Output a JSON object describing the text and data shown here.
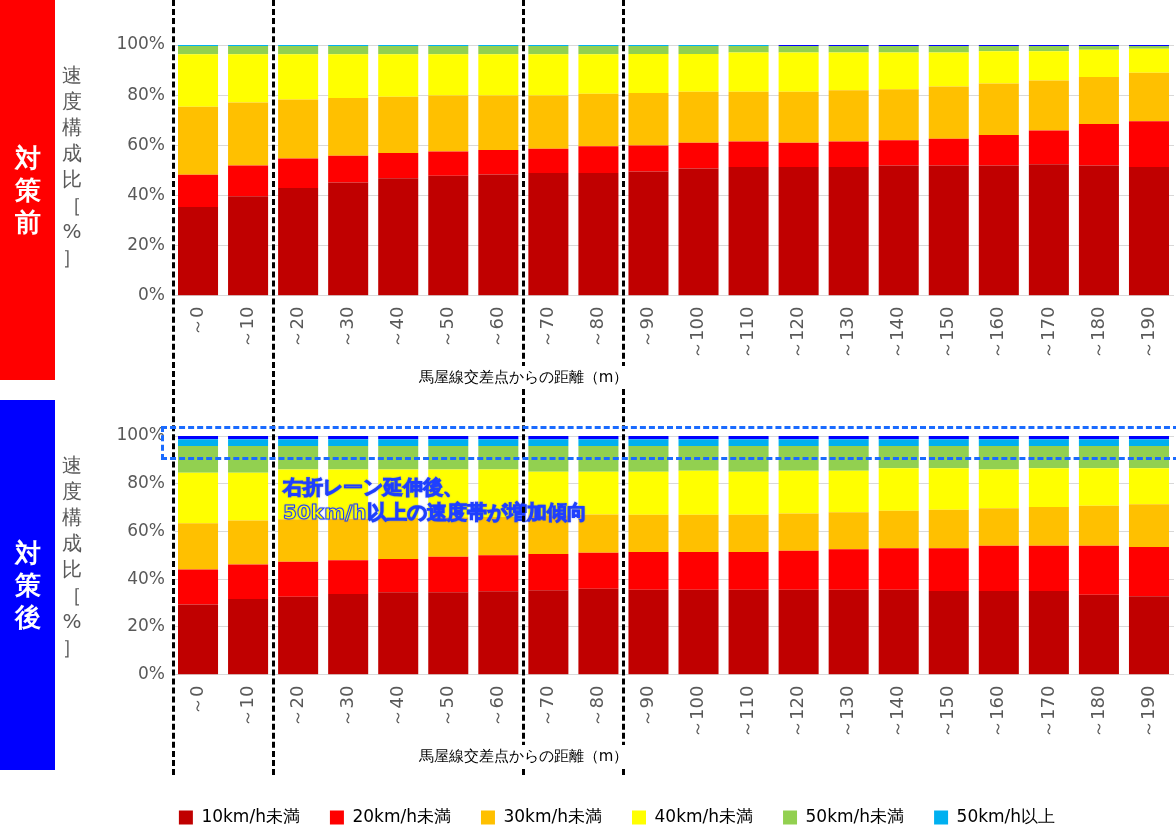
{
  "chart_data": [
    {
      "type": "bar",
      "title": "対策前",
      "stacked": true,
      "ylabel": "速度構成比［%］",
      "xlabel": "馬屋線交差点からの距離（m）",
      "categories": [
        "～0",
        "～10",
        "～20",
        "～30",
        "～40",
        "～50",
        "～60",
        "～70",
        "～80",
        "～90",
        "～100",
        "～110",
        "～120",
        "～130",
        "～140",
        "～150",
        "～160",
        "～170",
        "～180",
        "～190"
      ],
      "ylim": [
        0,
        100
      ],
      "yticks": [
        {
          "value": 0,
          "label": "0%"
        },
        {
          "value": 20,
          "label": "20%"
        },
        {
          "value": 40,
          "label": "40%"
        },
        {
          "value": 60,
          "label": "60%"
        },
        {
          "value": 80,
          "label": "80%"
        },
        {
          "value": 100,
          "label": "100%"
        }
      ],
      "grid": "y",
      "series": [
        {
          "color": "#c00000",
          "values": [
            35.4,
            39.7,
            42.9,
            45.1,
            46.8,
            47.8,
            48.3,
            48.9,
            48.9,
            49.5,
            50.7,
            51.3,
            51.3,
            51.3,
            51.9,
            51.9,
            51.9,
            52.4,
            51.9,
            51.3
          ]
        },
        {
          "color": "#ff0000",
          "values": [
            12.8,
            12.2,
            11.8,
            10.7,
            10.1,
            9.7,
            9.8,
            9.7,
            10.7,
            10.4,
            10.3,
            10.2,
            9.7,
            10.2,
            10.1,
            10.7,
            12.2,
            13.5,
            16.6,
            18.3
          ]
        },
        {
          "color": "#ffc000",
          "values": [
            27.2,
            25.2,
            23.6,
            23.1,
            22.5,
            22.4,
            21.8,
            21.3,
            21.0,
            20.9,
            20.3,
            19.8,
            20.3,
            20.4,
            20.3,
            20.8,
            20.5,
            19.9,
            18.7,
            19.3
          ]
        },
        {
          "color": "#ffff00",
          "values": [
            20.9,
            19.2,
            18.0,
            17.4,
            16.9,
            16.4,
            16.4,
            16.4,
            15.7,
            15.6,
            15.1,
            15.7,
            15.7,
            15.1,
            14.7,
            13.6,
            12.9,
            11.7,
            10.9,
            9.6
          ]
        },
        {
          "color": "#92d050",
          "values": [
            3.3,
            3.3,
            3.3,
            3.3,
            3.3,
            3.3,
            3.3,
            3.3,
            3.3,
            3.2,
            3.2,
            2.6,
            2.6,
            2.6,
            2.6,
            2.6,
            2.1,
            2.1,
            1.5,
            1.1
          ]
        },
        {
          "color": "#00b0f0",
          "values": [
            0.4,
            0.4,
            0.4,
            0.4,
            0.4,
            0.4,
            0.4,
            0.4,
            0.4,
            0.4,
            0.4,
            0.4,
            0,
            0,
            0,
            0,
            0,
            0,
            0,
            0
          ]
        },
        {
          "color": "#0000ff",
          "values": [
            0,
            0,
            0,
            0,
            0,
            0,
            0,
            0,
            0,
            0,
            0,
            0,
            0.4,
            0.4,
            0.4,
            0.4,
            0.4,
            0.4,
            0.4,
            0.4
          ]
        }
      ]
    },
    {
      "type": "bar",
      "title": "対策後",
      "stacked": true,
      "ylabel": "速度構成比［%］",
      "xlabel": "馬屋線交差点からの距離（m）",
      "legend": "bottom",
      "annotations": [
        "右折レーン延伸後、",
        "50km/h以上の速度帯が増加傾向"
      ],
      "categories": [
        "～0",
        "～10",
        "～20",
        "～30",
        "～40",
        "～50",
        "～60",
        "～70",
        "～80",
        "～90",
        "～100",
        "～110",
        "～120",
        "～130",
        "～140",
        "～150",
        "～160",
        "～170",
        "～180",
        "～190"
      ],
      "ylim": [
        0,
        100
      ],
      "yticks": [
        {
          "value": 0,
          "label": "0%"
        },
        {
          "value": 20,
          "label": "20%"
        },
        {
          "value": 40,
          "label": "40%"
        },
        {
          "value": 60,
          "label": "60%"
        },
        {
          "value": 80,
          "label": "80%"
        },
        {
          "value": 100,
          "label": "100%"
        }
      ],
      "grid": "y",
      "series": [
        {
          "name": "10km/h未満",
          "color": "#c00000",
          "values": [
            29.4,
            31.7,
            32.6,
            33.8,
            34.5,
            34.5,
            34.9,
            35.4,
            36.0,
            35.6,
            35.6,
            35.6,
            35.6,
            35.6,
            35.6,
            35.1,
            35.1,
            35.1,
            33.5,
            32.9
          ]
        },
        {
          "name": "20km/h未満",
          "color": "#ff0000",
          "values": [
            14.7,
            14.5,
            14.7,
            14.1,
            14.0,
            14.9,
            15.1,
            15.2,
            15.1,
            15.8,
            15.8,
            15.8,
            16.3,
            16.9,
            17.4,
            17.9,
            18.9,
            18.9,
            20.5,
            20.6
          ]
        },
        {
          "name": "30km/h未満",
          "color": "#ffc000",
          "values": [
            19.3,
            18.4,
            17.8,
            17.5,
            17.2,
            16.6,
            16.1,
            16.2,
            16.0,
            15.6,
            15.6,
            15.6,
            15.6,
            15.5,
            15.7,
            16.1,
            15.7,
            16.3,
            16.8,
            17.9
          ]
        },
        {
          "name": "40km/h未満",
          "color": "#ffff00",
          "values": [
            21.2,
            20.0,
            20.9,
            20.6,
            20.3,
            20.0,
            19.9,
            18.2,
            17.9,
            18.0,
            18.4,
            18.0,
            17.9,
            17.4,
            17.8,
            17.4,
            16.3,
            16.2,
            15.7,
            15.1
          ]
        },
        {
          "name": "50km/h未満",
          "color": "#92d050",
          "values": [
            11.2,
            11.2,
            9.8,
            9.8,
            9.8,
            9.8,
            9.8,
            10.8,
            10.8,
            10.8,
            10.4,
            10.8,
            10.4,
            10.4,
            9.3,
            9.3,
            9.8,
            9.3,
            9.3,
            9.3
          ]
        },
        {
          "name": "50km/h以上",
          "color": "#00b0f0",
          "values": [
            2.8,
            2.8,
            2.8,
            2.8,
            2.8,
            2.8,
            2.8,
            2.8,
            2.8,
            2.8,
            2.8,
            2.8,
            2.8,
            2.8,
            2.8,
            2.8,
            2.8,
            2.8,
            2.8,
            2.8
          ]
        },
        {
          "color": "#0000ff",
          "values": [
            1.4,
            1.4,
            1.4,
            1.4,
            1.4,
            1.4,
            1.4,
            1.4,
            1.4,
            1.4,
            1.4,
            1.4,
            1.4,
            1.4,
            1.4,
            1.4,
            1.4,
            1.4,
            1.4,
            1.4
          ]
        }
      ]
    }
  ]
}
